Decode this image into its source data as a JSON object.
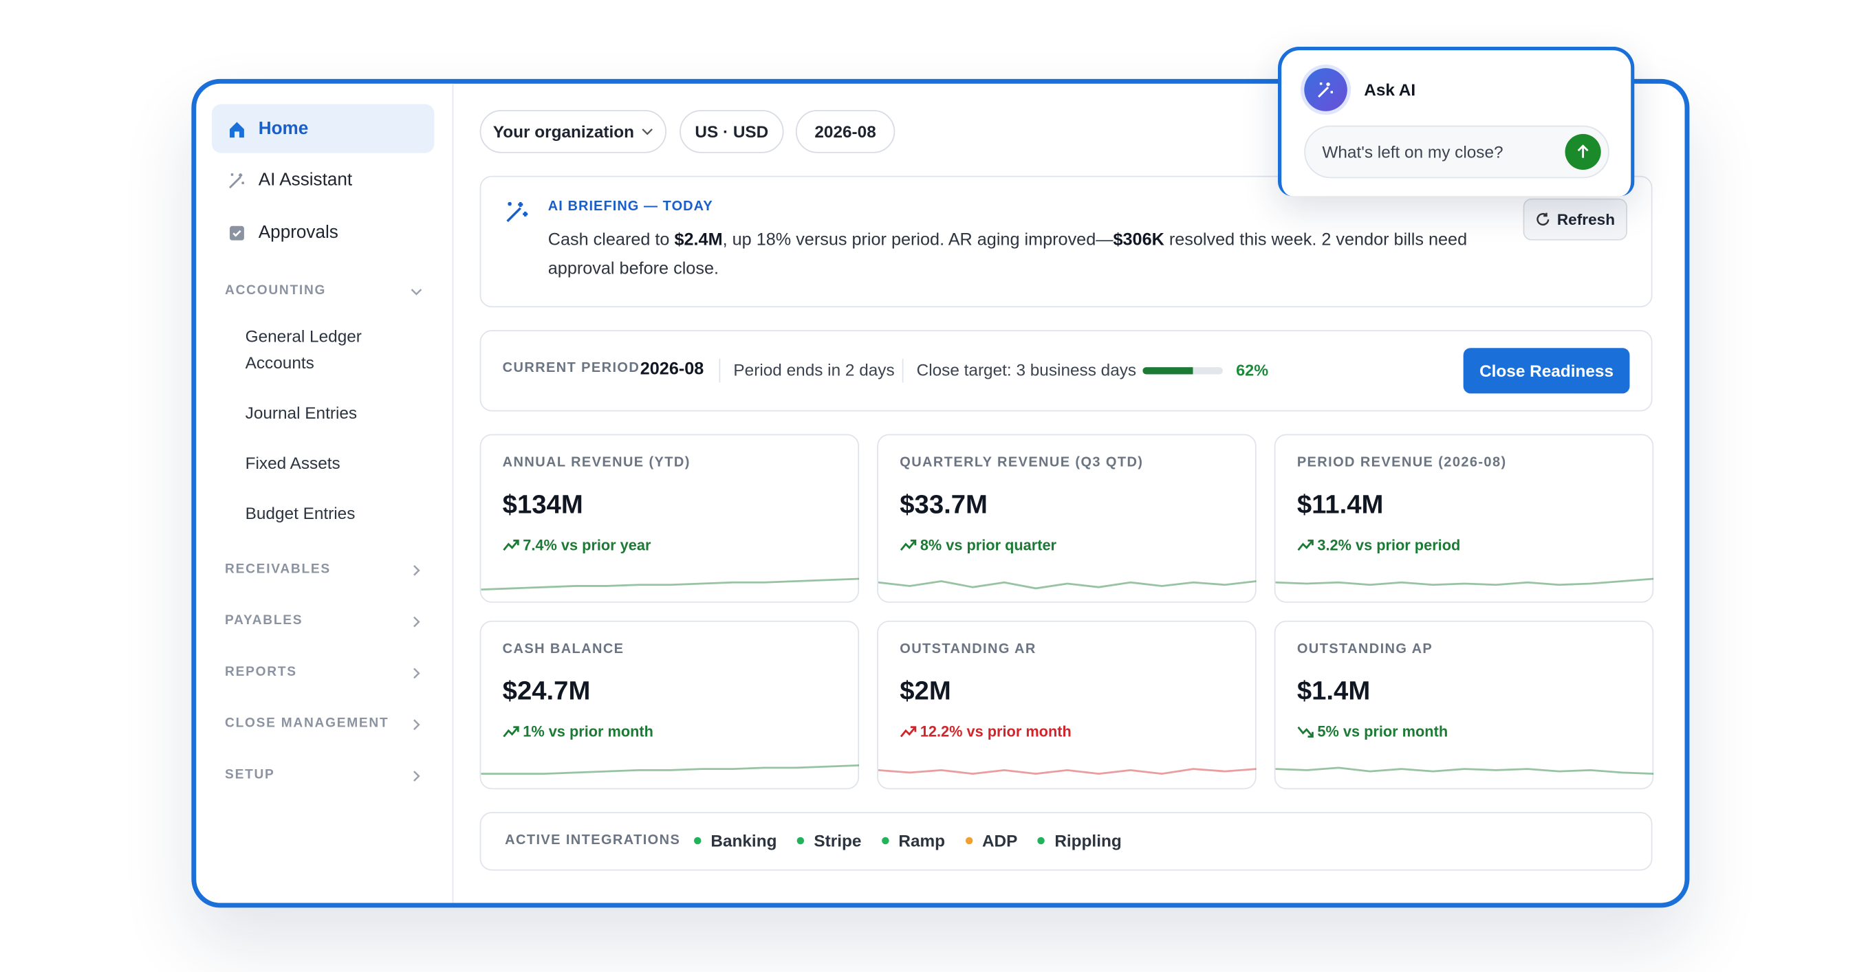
{
  "sidebar": {
    "nav": [
      "Home",
      "AI Assistant",
      "Approvals"
    ],
    "sections": [
      {
        "title": "ACCOUNTING",
        "items": [
          "General Ledger Accounts",
          "Journal Entries",
          "Fixed Assets",
          "Budget Entries"
        ]
      },
      {
        "title": "RECEIVABLES",
        "items": []
      },
      {
        "title": "PAYABLES",
        "items": []
      },
      {
        "title": "REPORTS",
        "items": []
      },
      {
        "title": "CLOSE MANAGEMENT",
        "items": []
      },
      {
        "title": "SETUP",
        "items": []
      }
    ]
  },
  "filters": [
    "Your organization",
    "US · USD",
    "2026-08"
  ],
  "briefing": {
    "label": "AI BRIEFING — TODAY",
    "segments": [
      "Cash cleared to ",
      "$2.4M",
      ", up 18% versus prior period. AR aging improved—",
      "$306K",
      " resolved this week. 2 vendor bills need approval before close."
    ],
    "refresh": "Refresh"
  },
  "period": {
    "label": "CURRENT PERIOD",
    "value": "2026-08",
    "ends": "Period ends in 2 days",
    "target": "Close target: 3 business days",
    "progress": {
      "value": 62,
      "label": "62%"
    },
    "button": "Close Readiness"
  },
  "kpis": [
    {
      "label": "ANNUAL REVENUE (YTD)",
      "value": "$134M",
      "change": "7.4% vs prior year",
      "trend": "up",
      "color": "#1b7a34"
    },
    {
      "label": "QUARTERLY REVENUE (Q3 QTD)",
      "value": "$33.7M",
      "change": "8% vs prior quarter",
      "trend": "up",
      "color": "#1b7a34"
    },
    {
      "label": "PERIOD REVENUE (2026-08)",
      "value": "$11.4M",
      "change": "3.2% vs prior period",
      "trend": "up",
      "color": "#1b7a34"
    },
    {
      "label": "CASH BALANCE",
      "value": "$24.7M",
      "change": "1% vs prior month",
      "trend": "up",
      "color": "#1b7a34"
    },
    {
      "label": "OUTSTANDING AR",
      "value": "$2M",
      "change": "12.2% vs prior month",
      "trend": "up",
      "color": "#d0262b"
    },
    {
      "label": "OUTSTANDING AP",
      "value": "$1.4M",
      "change": "5% vs prior month",
      "trend": "down",
      "color": "#1b7a34"
    }
  ],
  "integrations": {
    "label": "ACTIVE INTEGRATIONS",
    "items": [
      {
        "name": "Banking",
        "color": "#22b35a"
      },
      {
        "name": "Stripe",
        "color": "#22b35a"
      },
      {
        "name": "Ramp",
        "color": "#22b35a"
      },
      {
        "name": "ADP",
        "color": "#f0a030"
      },
      {
        "name": "Rippling",
        "color": "#22b35a"
      }
    ]
  },
  "ask_ai": {
    "title": "Ask AI",
    "placeholder": "What's left on my close?"
  }
}
